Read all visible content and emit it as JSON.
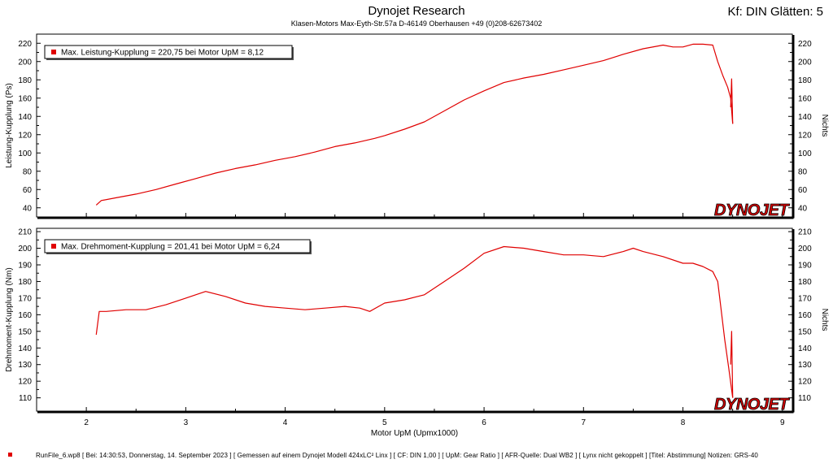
{
  "header": {
    "title": "Dynojet Research",
    "address": "Klasen-Motors     Max-Eyth-Str.57a     D-46149 Oberhausen     +49 (0)208-62673402",
    "kf_label": "Kf: DIN Glätten: 5"
  },
  "footer": {
    "text": "RunFile_6.wp8  [  Bei:  14:30:53,  Donnerstag,  14.  September  2023  ]  [  Gemessen  auf  einem  Dynojet  Modell  424xLC²  Linx  ]  [  CF:  DIN  1,00  ]  [  UpM:  Gear  Ratio  ]  [  AFR-Quelle:  Dual  WB2  ]  [  Lynx  nicht  gekoppelt  ]  [Titel:  Abstimmung]   Notizen:  GRS-40"
  },
  "colors": {
    "series": "#e00000",
    "axis": "#000000",
    "background": "#ffffff"
  },
  "chart_data": [
    {
      "type": "line",
      "ylabel": "Leistung-Kupplung (Ps)",
      "ylabel_right": "Nichts",
      "xlim": [
        1.5,
        9.1
      ],
      "ylim": [
        30,
        230
      ],
      "yticks": [
        40,
        60,
        80,
        100,
        120,
        140,
        160,
        180,
        200,
        220
      ],
      "grid": false,
      "legend": {
        "text": "Max. Leistung-Kupplung = 220,75 bei Motor UpM = 8,12",
        "placement": "top-left"
      },
      "logo": "DYNOJET",
      "series": [
        {
          "x": [
            2.1,
            2.15,
            2.3,
            2.5,
            2.7,
            2.9,
            3.1,
            3.3,
            3.5,
            3.7,
            3.9,
            4.1,
            4.3,
            4.5,
            4.7,
            4.9,
            5.0,
            5.2,
            5.4,
            5.6,
            5.8,
            6.0,
            6.2,
            6.4,
            6.6,
            6.8,
            7.0,
            7.2,
            7.4,
            7.6,
            7.8,
            7.9,
            8.0,
            8.1,
            8.2,
            8.3,
            8.35,
            8.4,
            8.45,
            8.48,
            8.5
          ],
          "y": [
            43,
            48,
            51,
            55,
            60,
            66,
            72,
            78,
            83,
            87,
            92,
            96,
            101,
            107,
            111,
            116,
            119,
            126,
            134,
            146,
            158,
            168,
            177,
            182,
            186,
            191,
            196,
            201,
            208,
            214,
            218,
            216,
            216,
            219,
            219,
            218,
            200,
            185,
            172,
            160,
            132
          ]
        },
        {
          "x": [
            8.48,
            8.49,
            8.5
          ],
          "y": [
            150,
            181,
            132
          ]
        }
      ]
    },
    {
      "type": "line",
      "ylabel": "Drehmoment-Kupplung (Nm)",
      "ylabel_right": "Nichts",
      "xlabel": "Motor UpM (Upmx1000)",
      "xlim": [
        1.5,
        9.1
      ],
      "ylim": [
        102,
        212
      ],
      "xticks": [
        2,
        3,
        4,
        5,
        6,
        7,
        8,
        9
      ],
      "yticks": [
        110,
        120,
        130,
        140,
        150,
        160,
        170,
        180,
        190,
        200,
        210
      ],
      "grid": false,
      "legend": {
        "text": "Max. Drehmoment-Kupplung = 201,41 bei Motor UpM = 6,24",
        "placement": "top-left"
      },
      "logo": "DYNOJET",
      "series": [
        {
          "x": [
            2.1,
            2.13,
            2.2,
            2.4,
            2.6,
            2.8,
            3.0,
            3.2,
            3.4,
            3.6,
            3.8,
            4.0,
            4.2,
            4.4,
            4.6,
            4.75,
            4.85,
            5.0,
            5.2,
            5.4,
            5.6,
            5.8,
            6.0,
            6.2,
            6.4,
            6.6,
            6.8,
            7.0,
            7.2,
            7.4,
            7.5,
            7.6,
            7.8,
            8.0,
            8.1,
            8.2,
            8.3,
            8.35,
            8.38,
            8.42,
            8.46,
            8.5
          ],
          "y": [
            148,
            162,
            162,
            163,
            163,
            166,
            170,
            174,
            171,
            167,
            165,
            164,
            163,
            164,
            165,
            164,
            162,
            167,
            169,
            172,
            180,
            188,
            197,
            201,
            200,
            198,
            196,
            196,
            195,
            198,
            200,
            198,
            195,
            191,
            191,
            189,
            186,
            180,
            165,
            145,
            128,
            110
          ]
        },
        {
          "x": [
            8.48,
            8.49,
            8.5
          ],
          "y": [
            130,
            150,
            110
          ]
        }
      ]
    }
  ]
}
